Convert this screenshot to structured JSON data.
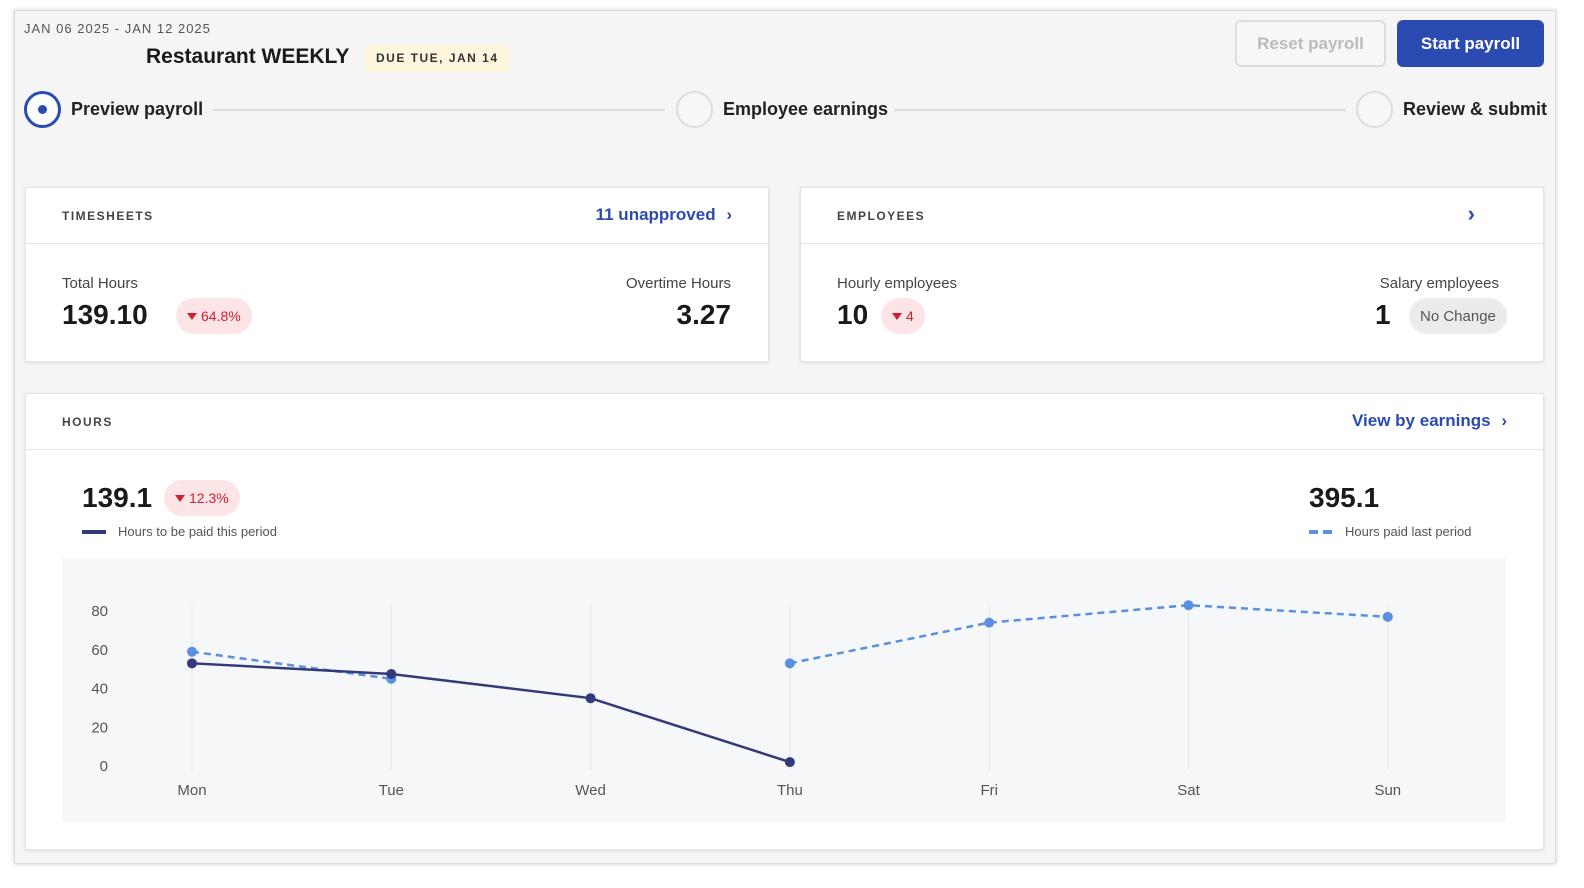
{
  "header": {
    "period": "JAN 06 2025 - JAN 12 2025",
    "title": "Restaurant WEEKLY",
    "due_badge": "DUE TUE, JAN 14",
    "reset_label": "Reset payroll",
    "start_label": "Start payroll"
  },
  "steps": [
    {
      "label": "Preview payroll",
      "active": true
    },
    {
      "label": "Employee earnings",
      "active": false
    },
    {
      "label": "Review & submit",
      "active": false
    }
  ],
  "timesheets": {
    "caption": "TIMESHEETS",
    "link": "11 unapproved",
    "total_label": "Total Hours",
    "total_value": "139.10",
    "total_change": "64.8%",
    "ot_label": "Overtime Hours",
    "ot_value": "3.27"
  },
  "employees": {
    "caption": "EMPLOYEES",
    "hourly_label": "Hourly employees",
    "hourly_value": "10",
    "hourly_change": "4",
    "salary_label": "Salary employees",
    "salary_value": "1",
    "salary_change": "No Change"
  },
  "hours": {
    "caption": "HOURS",
    "link": "View by earnings",
    "current_value": "139.1",
    "current_change": "12.3%",
    "current_legend": "Hours to be paid this period",
    "last_value": "395.1",
    "last_legend": "Hours paid last period"
  },
  "colors": {
    "accent": "#2c4bb0",
    "current": "#33397a",
    "last": "#5b8fe0",
    "negative": "#d0202e"
  },
  "chart_data": {
    "type": "line",
    "categories": [
      "Mon",
      "Tue",
      "Wed",
      "Thu",
      "Fri",
      "Sat",
      "Sun"
    ],
    "yticks": [
      0,
      20,
      40,
      60,
      80
    ],
    "ylim": [
      0,
      80
    ],
    "grid": "vertical",
    "series": [
      {
        "name": "Hours to be paid this period",
        "style": "solid",
        "values": [
          53,
          47.5,
          35,
          2,
          null,
          null,
          null
        ]
      },
      {
        "name": "Hours paid last period",
        "style": "dashed",
        "values": [
          59,
          45,
          null,
          53,
          74,
          83,
          77
        ]
      }
    ]
  }
}
